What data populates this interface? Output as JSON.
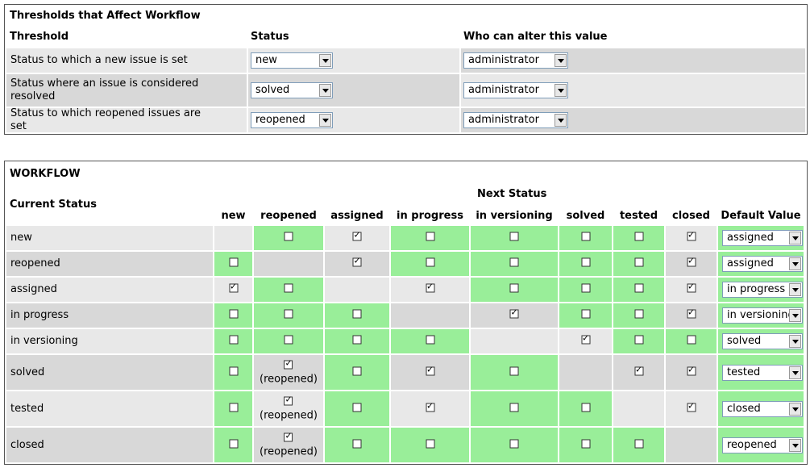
{
  "thresholds": {
    "title": "Thresholds that Affect Workflow",
    "headers": {
      "threshold": "Threshold",
      "status": "Status",
      "who": "Who can alter this value"
    },
    "rows": [
      {
        "label": "Status to which a new issue is set",
        "status": "new",
        "who": "administrator"
      },
      {
        "label": "Status where an issue is considered resolved",
        "status": "solved",
        "who": "administrator"
      },
      {
        "label": "Status to which reopened issues are set",
        "status": "reopened",
        "who": "administrator"
      }
    ]
  },
  "workflow": {
    "title": "WORKFLOW",
    "current_status_label": "Current Status",
    "next_status_label": "Next Status",
    "default_value_label": "Default Value",
    "columns": [
      "new",
      "reopened",
      "assigned",
      "in progress",
      "in versioning",
      "solved",
      "tested",
      "closed"
    ],
    "reopened_note": "(reopened)",
    "rows": [
      {
        "status": "new",
        "checks": [
          null,
          false,
          true,
          false,
          false,
          false,
          false,
          true
        ],
        "default": "assigned"
      },
      {
        "status": "reopened",
        "checks": [
          false,
          null,
          true,
          false,
          false,
          false,
          false,
          true
        ],
        "default": "assigned"
      },
      {
        "status": "assigned",
        "checks": [
          true,
          false,
          null,
          true,
          false,
          false,
          false,
          true
        ],
        "default": "in progress"
      },
      {
        "status": "in progress",
        "checks": [
          false,
          false,
          false,
          null,
          true,
          false,
          false,
          true
        ],
        "default": "in versioning"
      },
      {
        "status": "in versioning",
        "checks": [
          false,
          false,
          false,
          false,
          null,
          true,
          false,
          false
        ],
        "default": "solved"
      },
      {
        "status": "solved",
        "checks": [
          false,
          true,
          false,
          true,
          false,
          null,
          true,
          true
        ],
        "default": "tested"
      },
      {
        "status": "tested",
        "checks": [
          false,
          true,
          false,
          true,
          false,
          false,
          null,
          true
        ],
        "default": "closed"
      },
      {
        "status": "closed",
        "checks": [
          false,
          true,
          false,
          false,
          false,
          false,
          false,
          null
        ],
        "default": "reopened"
      }
    ],
    "colors": {
      "green": "#99ee99",
      "light": "#e8e8e8",
      "dark": "#d8d8d8"
    }
  }
}
